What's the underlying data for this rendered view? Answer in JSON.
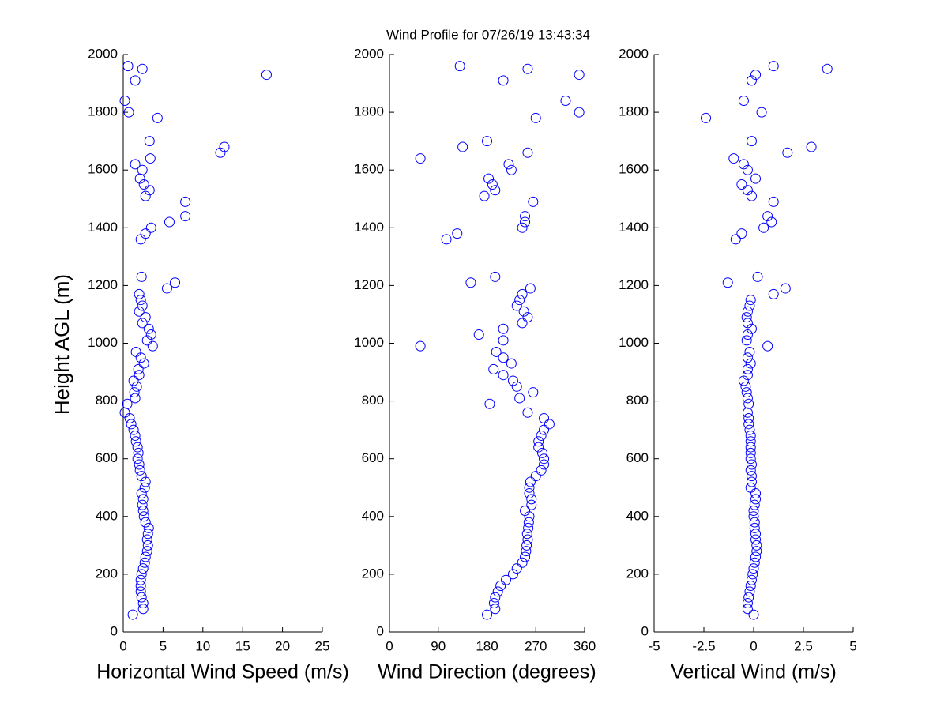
{
  "chart_data": [
    {
      "type": "scatter",
      "title": "Wind Profile for  07/26/19 13:43:34",
      "xlabel": "Horizontal Wind Speed (m/s)",
      "ylabel": "Height AGL (m)",
      "color": "#0000ff",
      "xlim": [
        0,
        25
      ],
      "xticks": [
        0,
        5,
        10,
        15,
        20,
        25
      ],
      "ylim": [
        0,
        2000
      ],
      "yticks": [
        0,
        200,
        400,
        600,
        800,
        1000,
        1200,
        1400,
        1600,
        1800,
        2000
      ],
      "x": [
        1.2,
        2.5,
        2.5,
        2.3,
        2.2,
        2.2,
        2.2,
        2.3,
        2.5,
        2.7,
        2.8,
        3.0,
        3.1,
        3.0,
        3.1,
        3.2,
        2.8,
        2.6,
        2.5,
        2.4,
        2.5,
        2.3,
        2.7,
        2.8,
        2.3,
        2.1,
        2.0,
        1.8,
        1.9,
        1.8,
        1.6,
        1.5,
        1.3,
        1.0,
        0.8,
        0.2,
        0.5,
        1.5,
        1.4,
        1.7,
        1.3,
        2.0,
        1.9,
        2.6,
        2.2,
        1.6,
        3.7,
        3.0,
        3.5,
        3.2,
        2.4,
        2.8,
        2.0,
        2.4,
        2.2,
        2.0,
        5.5,
        6.5,
        2.3,
        2.2,
        2.8,
        3.5,
        5.8,
        7.8,
        7.8,
        2.8,
        3.3,
        2.6,
        2.1,
        2.4,
        1.5,
        3.4,
        12.2,
        12.7,
        3.3,
        4.3,
        0.7,
        0.2,
        1.5,
        18.0,
        2.4,
        0.6
      ],
      "y": [
        60,
        80,
        100,
        120,
        140,
        160,
        180,
        200,
        220,
        240,
        260,
        280,
        300,
        320,
        340,
        360,
        380,
        400,
        420,
        440,
        460,
        480,
        500,
        520,
        540,
        560,
        580,
        600,
        620,
        640,
        660,
        680,
        700,
        720,
        740,
        760,
        790,
        810,
        830,
        850,
        870,
        890,
        910,
        930,
        950,
        970,
        990,
        1010,
        1030,
        1050,
        1070,
        1090,
        1110,
        1130,
        1150,
        1170,
        1190,
        1210,
        1230,
        1360,
        1380,
        1400,
        1420,
        1440,
        1490,
        1510,
        1530,
        1550,
        1570,
        1600,
        1620,
        1640,
        1660,
        1680,
        1700,
        1780,
        1800,
        1840,
        1910,
        1930,
        1950,
        1960
      ]
    },
    {
      "type": "scatter",
      "xlabel": "Wind Direction (degrees)",
      "color": "#0000ff",
      "xlim": [
        0,
        360
      ],
      "xticks": [
        0,
        90,
        180,
        270,
        360
      ],
      "ylim": [
        0,
        2000
      ],
      "yticks": [
        0,
        200,
        400,
        600,
        800,
        1000,
        1200,
        1400,
        1600,
        1800,
        2000
      ],
      "x": [
        180,
        195,
        193,
        195,
        200,
        205,
        215,
        228,
        235,
        245,
        250,
        252,
        253,
        255,
        254,
        256,
        257,
        258,
        250,
        262,
        262,
        258,
        258,
        260,
        270,
        280,
        285,
        285,
        282,
        275,
        275,
        280,
        285,
        295,
        285,
        255,
        185,
        240,
        265,
        235,
        228,
        210,
        192,
        225,
        210,
        197,
        57,
        210,
        165,
        210,
        245,
        255,
        248,
        235,
        240,
        245,
        260,
        150,
        195,
        105,
        125,
        245,
        250,
        250,
        265,
        175,
        195,
        190,
        183,
        225,
        220,
        57,
        255,
        135,
        180,
        270,
        350,
        325,
        210,
        350,
        255,
        130
      ],
      "y": [
        60,
        80,
        100,
        120,
        140,
        160,
        180,
        200,
        220,
        240,
        260,
        280,
        300,
        320,
        340,
        360,
        380,
        400,
        420,
        440,
        460,
        480,
        500,
        520,
        540,
        560,
        580,
        600,
        620,
        640,
        660,
        680,
        700,
        720,
        740,
        760,
        790,
        810,
        830,
        850,
        870,
        890,
        910,
        930,
        950,
        970,
        990,
        1010,
        1030,
        1050,
        1070,
        1090,
        1110,
        1130,
        1150,
        1170,
        1190,
        1210,
        1230,
        1360,
        1380,
        1400,
        1420,
        1440,
        1490,
        1510,
        1530,
        1550,
        1570,
        1600,
        1620,
        1640,
        1660,
        1680,
        1700,
        1780,
        1800,
        1840,
        1910,
        1930,
        1950,
        1960
      ]
    },
    {
      "type": "scatter",
      "xlabel": "Vertical Wind (m/s)",
      "color": "#0000ff",
      "xlim": [
        -5,
        5
      ],
      "xticks": [
        -5,
        -2.5,
        0,
        2.5,
        5
      ],
      "ylim": [
        0,
        2000
      ],
      "yticks": [
        0,
        200,
        400,
        600,
        800,
        1000,
        1200,
        1400,
        1600,
        1800,
        2000
      ],
      "x": [
        0,
        -0.3,
        -0.3,
        -0.25,
        -0.2,
        -0.15,
        -0.1,
        -0.05,
        0,
        0.05,
        0.1,
        0.15,
        0.15,
        0.1,
        0.1,
        0.05,
        0.05,
        0,
        0,
        0.05,
        0.1,
        0.1,
        -0.15,
        -0.1,
        -0.1,
        -0.15,
        -0.1,
        -0.15,
        -0.15,
        -0.15,
        -0.15,
        -0.15,
        -0.2,
        -0.25,
        -0.25,
        -0.3,
        -0.25,
        -0.3,
        -0.35,
        -0.4,
        -0.5,
        -0.3,
        -0.3,
        -0.15,
        -0.3,
        -0.2,
        0.7,
        -0.35,
        -0.3,
        -0.1,
        -0.3,
        -0.35,
        -0.3,
        -0.2,
        -0.15,
        1.0,
        1.6,
        -1.3,
        0.2,
        -0.9,
        -0.6,
        0.5,
        0.9,
        0.7,
        1.0,
        -0.1,
        -0.3,
        -0.6,
        0.1,
        -0.3,
        -0.5,
        -1.0,
        1.7,
        2.9,
        -0.1,
        -2.4,
        0.4,
        -0.5,
        -0.1,
        0.1,
        3.7,
        1.0
      ],
      "y": [
        60,
        80,
        100,
        120,
        140,
        160,
        180,
        200,
        220,
        240,
        260,
        280,
        300,
        320,
        340,
        360,
        380,
        400,
        420,
        440,
        460,
        480,
        500,
        520,
        540,
        560,
        580,
        600,
        620,
        640,
        660,
        680,
        700,
        720,
        740,
        760,
        790,
        810,
        830,
        850,
        870,
        890,
        910,
        930,
        950,
        970,
        990,
        1010,
        1030,
        1050,
        1070,
        1090,
        1110,
        1130,
        1150,
        1170,
        1190,
        1210,
        1230,
        1360,
        1380,
        1400,
        1420,
        1440,
        1490,
        1510,
        1530,
        1550,
        1570,
        1600,
        1620,
        1640,
        1660,
        1680,
        1700,
        1780,
        1800,
        1840,
        1910,
        1930,
        1950,
        1960
      ]
    }
  ]
}
